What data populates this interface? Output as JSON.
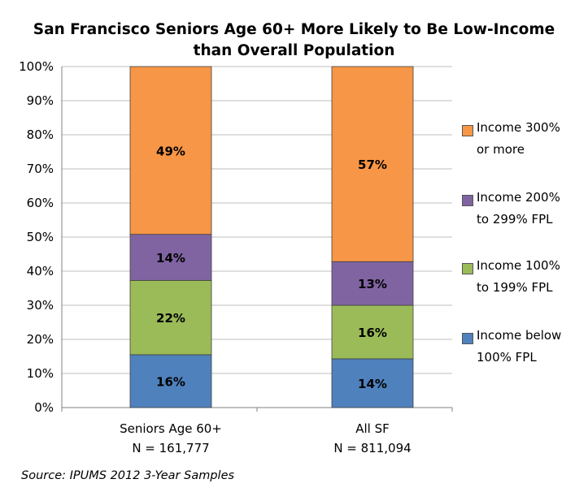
{
  "chart_data": {
    "type": "bar",
    "stacked": true,
    "title_line1": "San Francisco Seniors Age 60+ More Likely to Be Low-Income",
    "title_line2": "than Overall Population",
    "categories": [
      "Seniors Age 60+",
      "All SF"
    ],
    "category_sublabels": [
      "N = 161,777",
      "N = 811,094"
    ],
    "ylim": [
      0,
      100
    ],
    "yticks": [
      "0%",
      "10%",
      "20%",
      "30%",
      "40%",
      "50%",
      "60%",
      "70%",
      "80%",
      "90%",
      "100%"
    ],
    "grid": true,
    "legend_position": "right",
    "series": [
      {
        "name_line1": "Income below",
        "name_line2": "100% FPL",
        "values": [
          16,
          14
        ],
        "boundaries": [
          0,
          0
        ],
        "tops": [
          15.5,
          14.3
        ],
        "labels": [
          "16%",
          "14%"
        ],
        "color": "#4F81BD"
      },
      {
        "name_line1": "Income 100%",
        "name_line2": "to 199% FPL",
        "values": [
          22,
          16
        ],
        "tops": [
          37.3,
          30.0
        ],
        "labels": [
          "22%",
          "16%"
        ],
        "color": "#9BBB59"
      },
      {
        "name_line1": "Income 200%",
        "name_line2": "to 299% FPL",
        "values": [
          14,
          13
        ],
        "tops": [
          50.8,
          42.8
        ],
        "labels": [
          "14%",
          "13%"
        ],
        "color": "#8064A2"
      },
      {
        "name_line1": "Income 300%",
        "name_line2": "or more",
        "values": [
          49,
          57
        ],
        "tops": [
          100,
          100
        ],
        "labels": [
          "49%",
          "57%"
        ],
        "color": "#F79646"
      }
    ]
  },
  "source": "Source: IPUMS 2012 3-Year Samples"
}
